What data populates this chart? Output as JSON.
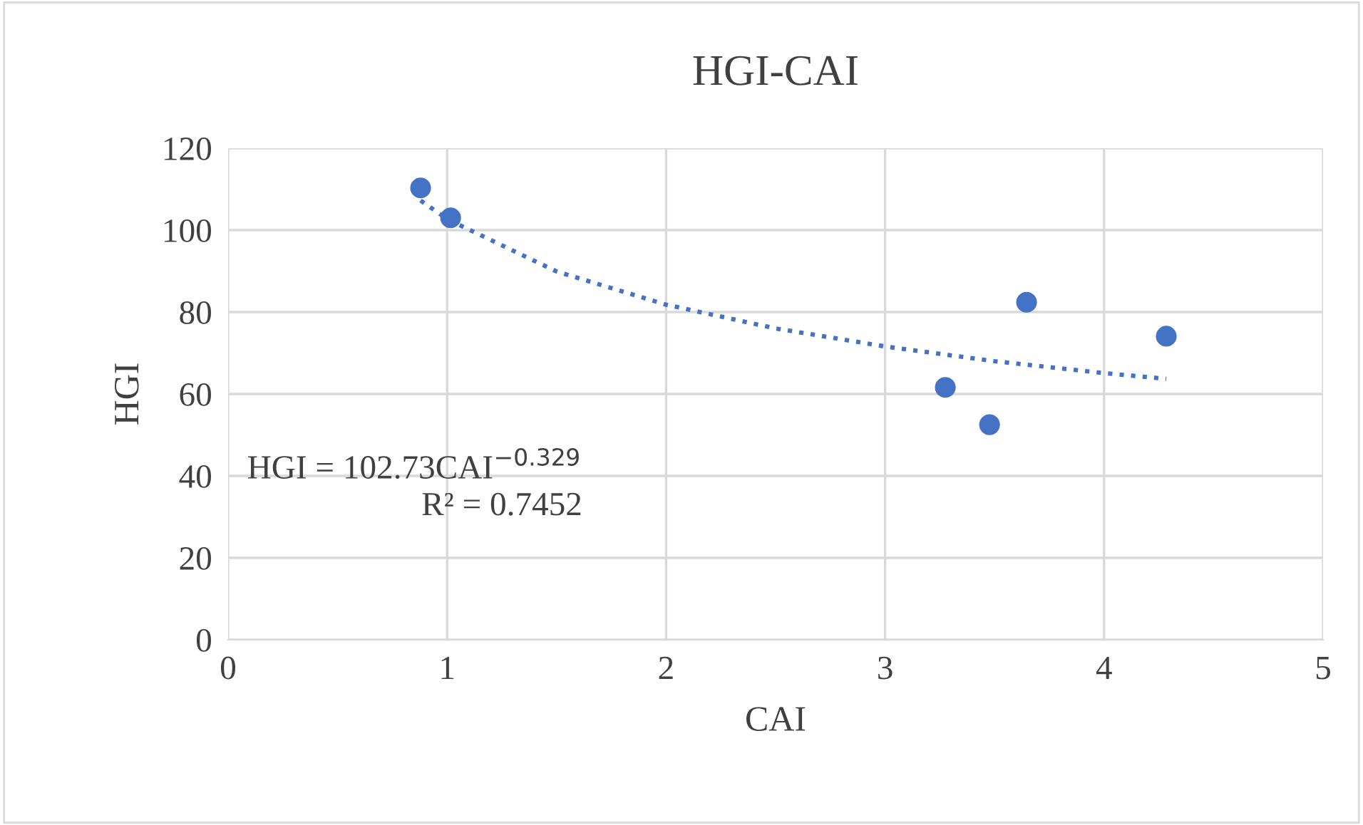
{
  "chart_data": {
    "type": "scatter",
    "title": "HGI-CAI",
    "xlabel": "CAI",
    "ylabel": "HGI",
    "xlim": [
      0,
      5
    ],
    "xticks": [
      0,
      1,
      2,
      3,
      4,
      5
    ],
    "ylim": [
      0,
      120
    ],
    "yticks": [
      0,
      20,
      40,
      60,
      80,
      100,
      120
    ],
    "grid": true,
    "legend": false,
    "series": [
      {
        "marker": "circle",
        "color": "#4472c4",
        "x": [
          0.879,
          1.016,
          3.275,
          3.477,
          3.646,
          4.284
        ],
        "values": [
          110.3,
          103.0,
          61.6,
          52.5,
          82.4,
          74.1
        ]
      },
      {
        "type": "line",
        "marker": "none",
        "line_style": "dotted",
        "color": "#4472c4",
        "x": [
          0.879,
          1.0,
          1.5,
          2.0,
          2.5,
          3.0,
          3.5,
          4.0,
          4.284
        ],
        "values": [
          107.2,
          102.7,
          89.9,
          81.8,
          76.0,
          71.6,
          68.0,
          65.1,
          63.7
        ]
      }
    ],
    "annotations": [
      "HGI = 102.73CAI$^{−0.329}$",
      "R² = 0.7452"
    ]
  }
}
